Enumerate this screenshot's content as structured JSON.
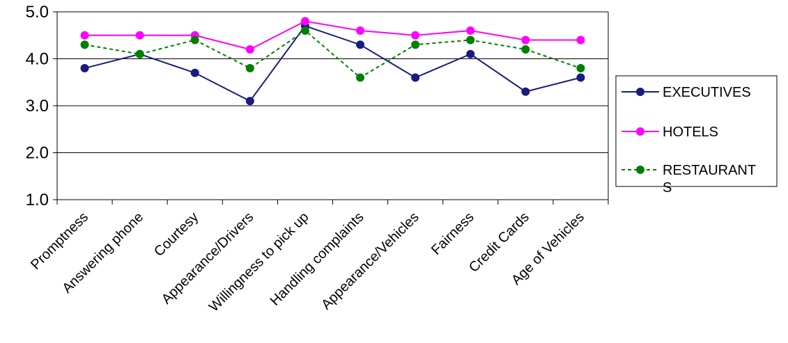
{
  "chart_data": {
    "type": "line",
    "categories": [
      "Promptness",
      "Answering phone",
      "Courtesy",
      "Appearance/Drivers",
      "Willingness to pick up",
      "Handling complaints",
      "Appearance/Vehicles",
      "Fairness",
      "Credit Cards",
      "Age of Vehicles"
    ],
    "series": [
      {
        "name": "EXECUTIVES",
        "color": "#1a1a80",
        "dashed": false,
        "values": [
          3.8,
          4.1,
          3.7,
          3.1,
          4.7,
          4.3,
          3.6,
          4.1,
          3.3,
          3.6
        ]
      },
      {
        "name": "HOTELS",
        "color": "#ff00ff",
        "dashed": false,
        "values": [
          4.5,
          4.5,
          4.5,
          4.2,
          4.8,
          4.6,
          4.5,
          4.6,
          4.4,
          4.4
        ]
      },
      {
        "name": "RESTAURANTS",
        "color": "#008000",
        "dashed": true,
        "values": [
          4.3,
          4.1,
          4.4,
          3.8,
          4.6,
          3.6,
          4.3,
          4.4,
          4.2,
          3.8
        ]
      }
    ],
    "y_ticks": [
      "1.0",
      "2.0",
      "3.0",
      "4.0",
      "5.0"
    ],
    "ylim": [
      1.0,
      5.0
    ],
    "grid": "horizontal",
    "legend_position": "right",
    "legend_lines": [
      [
        "EXECUTIVES"
      ],
      [
        "HOTELS"
      ],
      [
        "RESTAURANT",
        "S"
      ]
    ]
  }
}
